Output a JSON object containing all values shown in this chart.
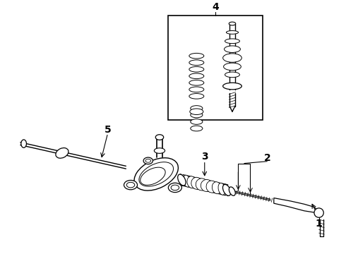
{
  "bg_color": "#ffffff",
  "line_color": "#000000",
  "fig_width": 4.9,
  "fig_height": 3.6,
  "dpi": 100,
  "label_fontsize": 10,
  "label_fontweight": "bold"
}
